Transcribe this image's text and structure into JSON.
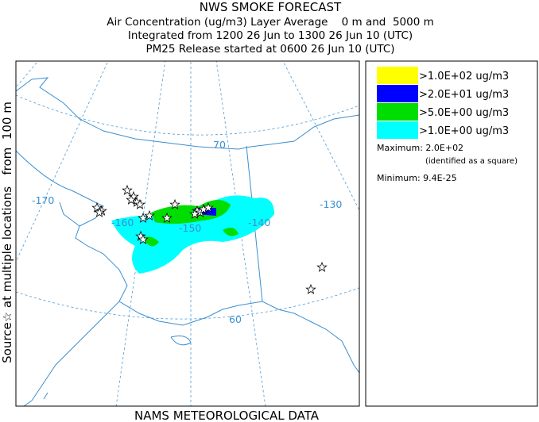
{
  "header": {
    "title": "NWS SMOKE FORECAST",
    "lines": [
      "Air Concentration (ug/m3) Layer Average    0 m and  5000 m",
      "Integrated from 1200 26 Jun to 1300 26 Jun 10 (UTC)",
      "PM25 Release started at 0600 26 Jun 10 (UTC)"
    ]
  },
  "side_label": "Source☆ at multiple locations   from  100 m",
  "map": {
    "longitude_labels": [
      "-170",
      "-160",
      "-150",
      "-140",
      "-130"
    ],
    "latitude_labels": [
      "70",
      "60"
    ]
  },
  "legend": {
    "entries": [
      {
        "label": ">1.0E+02 ug/m3",
        "color": "#ffff00"
      },
      {
        "label": ">2.0E+01 ug/m3",
        "color": "#0000ff"
      },
      {
        "label": ">5.0E+00 ug/m3",
        "color": "#00dd00"
      },
      {
        "label": ">1.0E+00 ug/m3",
        "color": "#00ffff"
      }
    ],
    "maximum": "Maximum: 2.0E+02",
    "maximum_note": "(identified as a square)",
    "minimum": "Minimum: 9.4E-25"
  },
  "footer": "NAMS METEOROLOGICAL DATA"
}
